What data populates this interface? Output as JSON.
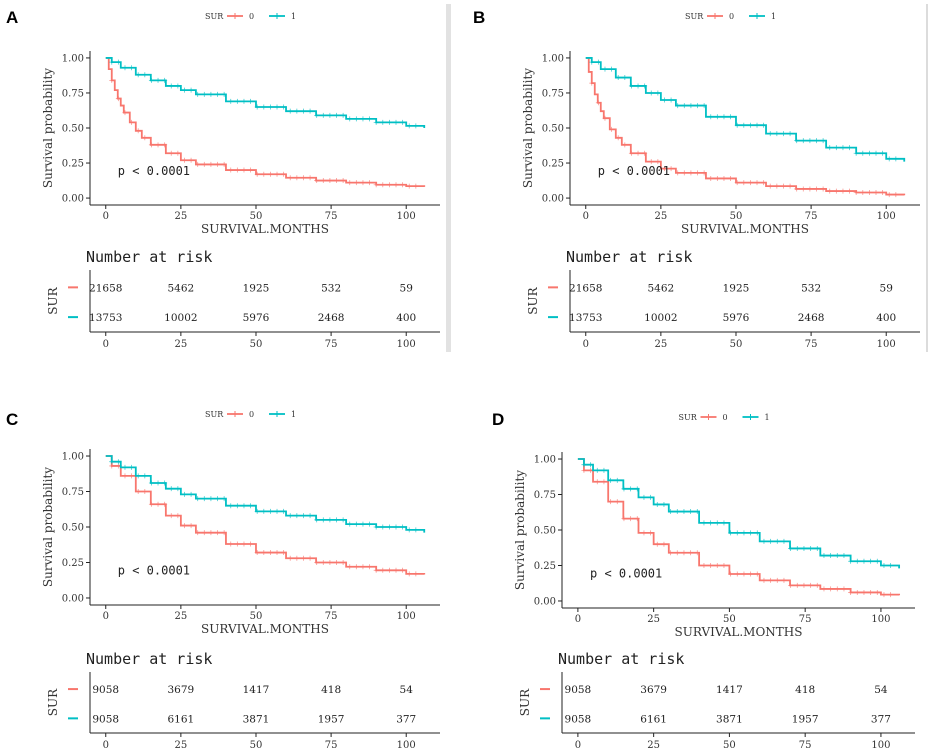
{
  "chart_data": [
    {
      "panel": "A",
      "type": "line",
      "title": "",
      "legend": {
        "title": "SUR",
        "entries": [
          "0",
          "1"
        ]
      },
      "xlabel": "SURVIVAL.MONTHS",
      "ylabel": "Survival probability",
      "xlim": [
        0,
        106
      ],
      "ylim": [
        0,
        1
      ],
      "xticks": [
        "0",
        "25",
        "50",
        "75",
        "100"
      ],
      "yticks": [
        "0.00",
        "0.25",
        "0.50",
        "0.75",
        "1.00"
      ],
      "pvalue": "p < 0.0001",
      "series": [
        {
          "name": "0",
          "color": "#F8766D",
          "x": [
            0,
            1,
            2,
            3,
            4,
            5,
            6,
            8,
            10,
            12,
            15,
            20,
            25,
            30,
            40,
            50,
            60,
            70,
            80,
            90,
            100,
            106
          ],
          "y": [
            1.0,
            0.92,
            0.84,
            0.77,
            0.71,
            0.66,
            0.61,
            0.54,
            0.48,
            0.43,
            0.38,
            0.32,
            0.27,
            0.24,
            0.2,
            0.17,
            0.145,
            0.125,
            0.11,
            0.095,
            0.085,
            0.08
          ]
        },
        {
          "name": "1",
          "color": "#00BFC4",
          "x": [
            0,
            2,
            5,
            10,
            15,
            20,
            25,
            30,
            40,
            50,
            60,
            70,
            80,
            90,
            100,
            106
          ],
          "y": [
            1.0,
            0.97,
            0.93,
            0.88,
            0.84,
            0.8,
            0.77,
            0.74,
            0.69,
            0.65,
            0.62,
            0.59,
            0.565,
            0.54,
            0.515,
            0.5
          ]
        }
      ],
      "risk_table": {
        "title": "Number at risk",
        "ylabel": "SUR",
        "rows": [
          {
            "group": "0",
            "color": "#F8766D",
            "values": [
              "21658",
              "5462",
              "1925",
              "532",
              "59"
            ]
          },
          {
            "group": "1",
            "color": "#00BFC4",
            "values": [
              "13753",
              "10002",
              "5976",
              "2468",
              "400"
            ]
          }
        ]
      }
    },
    {
      "panel": "B",
      "type": "line",
      "title": "",
      "legend": {
        "title": "SUR",
        "entries": [
          "0",
          "1"
        ]
      },
      "xlabel": "SURVIVAL.MONTHS",
      "ylabel": "Survival probability",
      "xlim": [
        0,
        106
      ],
      "ylim": [
        0,
        1
      ],
      "xticks": [
        "0",
        "25",
        "50",
        "75",
        "100"
      ],
      "yticks": [
        "0.00",
        "0.25",
        "0.50",
        "0.75",
        "1.00"
      ],
      "pvalue": "p < 0.0001",
      "series": [
        {
          "name": "0",
          "color": "#F8766D",
          "x": [
            0,
            1,
            2,
            3,
            4,
            5,
            6,
            8,
            10,
            12,
            15,
            20,
            25,
            30,
            40,
            50,
            60,
            70,
            80,
            90,
            100,
            106
          ],
          "y": [
            1.0,
            0.9,
            0.82,
            0.74,
            0.68,
            0.62,
            0.57,
            0.49,
            0.43,
            0.38,
            0.32,
            0.26,
            0.21,
            0.18,
            0.14,
            0.11,
            0.085,
            0.065,
            0.05,
            0.04,
            0.025,
            0.02
          ]
        },
        {
          "name": "1",
          "color": "#00BFC4",
          "x": [
            0,
            2,
            5,
            10,
            15,
            20,
            25,
            30,
            40,
            50,
            60,
            70,
            80,
            90,
            100,
            106
          ],
          "y": [
            1.0,
            0.97,
            0.92,
            0.86,
            0.8,
            0.75,
            0.7,
            0.66,
            0.58,
            0.52,
            0.46,
            0.41,
            0.36,
            0.32,
            0.28,
            0.26
          ]
        }
      ],
      "risk_table": {
        "title": "Number at risk",
        "ylabel": "SUR",
        "rows": [
          {
            "group": "0",
            "color": "#F8766D",
            "values": [
              "21658",
              "5462",
              "1925",
              "532",
              "59"
            ]
          },
          {
            "group": "1",
            "color": "#00BFC4",
            "values": [
              "13753",
              "10002",
              "5976",
              "2468",
              "400"
            ]
          }
        ]
      }
    },
    {
      "panel": "C",
      "type": "line",
      "title": "",
      "legend": {
        "title": "SUR",
        "entries": [
          "0",
          "1"
        ]
      },
      "xlabel": "SURVIVAL.MONTHS",
      "ylabel": "Survival probability",
      "xlim": [
        0,
        106
      ],
      "ylim": [
        0,
        1
      ],
      "xticks": [
        "0",
        "25",
        "50",
        "75",
        "100"
      ],
      "yticks": [
        "0.00",
        "0.25",
        "0.50",
        "0.75",
        "1.00"
      ],
      "pvalue": "p < 0.0001",
      "series": [
        {
          "name": "0",
          "color": "#F8766D",
          "x": [
            0,
            2,
            5,
            10,
            15,
            20,
            25,
            30,
            40,
            50,
            60,
            70,
            80,
            90,
            100,
            106
          ],
          "y": [
            1.0,
            0.93,
            0.86,
            0.75,
            0.66,
            0.58,
            0.51,
            0.46,
            0.38,
            0.32,
            0.28,
            0.25,
            0.22,
            0.195,
            0.17,
            0.165
          ]
        },
        {
          "name": "1",
          "color": "#00BFC4",
          "x": [
            0,
            2,
            5,
            10,
            15,
            20,
            25,
            30,
            40,
            50,
            60,
            70,
            80,
            90,
            100,
            106
          ],
          "y": [
            1.0,
            0.96,
            0.92,
            0.86,
            0.81,
            0.77,
            0.73,
            0.7,
            0.65,
            0.61,
            0.58,
            0.55,
            0.52,
            0.5,
            0.48,
            0.46
          ]
        }
      ],
      "risk_table": {
        "title": "Number at risk",
        "ylabel": "SUR",
        "rows": [
          {
            "group": "0",
            "color": "#F8766D",
            "values": [
              "9058",
              "3679",
              "1417",
              "418",
              "54"
            ]
          },
          {
            "group": "1",
            "color": "#00BFC4",
            "values": [
              "9058",
              "6161",
              "3871",
              "1957",
              "377"
            ]
          }
        ]
      }
    },
    {
      "panel": "D",
      "type": "line",
      "title": "",
      "legend": {
        "title": "SUR",
        "entries": [
          "0",
          "1"
        ]
      },
      "xlabel": "SURVIVAL.MONTHS",
      "ylabel": "Survival probability",
      "xlim": [
        0,
        106
      ],
      "ylim": [
        0,
        1
      ],
      "xticks": [
        "0",
        "25",
        "50",
        "75",
        "100"
      ],
      "yticks": [
        "0.00",
        "0.25",
        "0.50",
        "0.75",
        "1.00"
      ],
      "pvalue": "p < 0.0001",
      "series": [
        {
          "name": "0",
          "color": "#F8766D",
          "x": [
            0,
            2,
            5,
            10,
            15,
            20,
            25,
            30,
            40,
            50,
            60,
            70,
            80,
            90,
            100,
            106
          ],
          "y": [
            1.0,
            0.92,
            0.84,
            0.7,
            0.58,
            0.48,
            0.4,
            0.34,
            0.25,
            0.19,
            0.145,
            0.11,
            0.085,
            0.06,
            0.045,
            0.04
          ]
        },
        {
          "name": "1",
          "color": "#00BFC4",
          "x": [
            0,
            2,
            5,
            10,
            15,
            20,
            25,
            30,
            40,
            50,
            60,
            70,
            80,
            90,
            100,
            106
          ],
          "y": [
            1.0,
            0.96,
            0.92,
            0.85,
            0.79,
            0.73,
            0.68,
            0.63,
            0.55,
            0.48,
            0.42,
            0.37,
            0.32,
            0.28,
            0.25,
            0.23
          ]
        }
      ],
      "risk_table": {
        "title": "Number at risk",
        "ylabel": "SUR",
        "rows": [
          {
            "group": "0",
            "color": "#F8766D",
            "values": [
              "9058",
              "3679",
              "1417",
              "418",
              "54"
            ]
          },
          {
            "group": "1",
            "color": "#00BFC4",
            "values": [
              "9058",
              "6161",
              "3871",
              "1957",
              "377"
            ]
          }
        ]
      }
    }
  ]
}
